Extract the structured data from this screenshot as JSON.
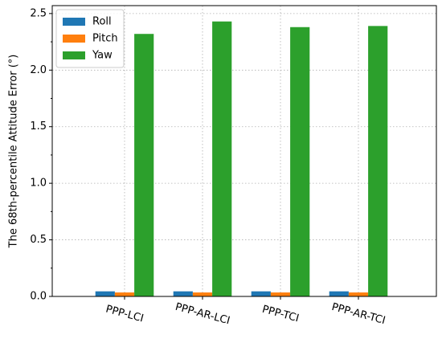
{
  "chart_data": {
    "type": "bar",
    "y_label": "The 68th-percentile Attitude Error (°)",
    "categories": [
      "PPP-LCI",
      "PPP-AR-LCI",
      "PPP-TCI",
      "PPP-AR-TCI"
    ],
    "series": [
      {
        "name": "Roll",
        "color": "#1f77b4",
        "values": [
          0.045,
          0.045,
          0.045,
          0.045
        ]
      },
      {
        "name": "Pitch",
        "color": "#ff7f0e",
        "values": [
          0.035,
          0.035,
          0.035,
          0.035
        ]
      },
      {
        "name": "Yaw",
        "color": "#2ca02c",
        "values": [
          2.32,
          2.43,
          2.38,
          2.39
        ]
      }
    ],
    "ylim": [
      0,
      2.57
    ],
    "yticks": [
      {
        "value": 0,
        "label": "0.0"
      },
      0.5,
      {
        "value": 1,
        "label": "1.0"
      },
      1.5,
      {
        "value": 2,
        "label": "2.0"
      },
      2.5
    ],
    "grid": true,
    "legend": "upper-left"
  }
}
